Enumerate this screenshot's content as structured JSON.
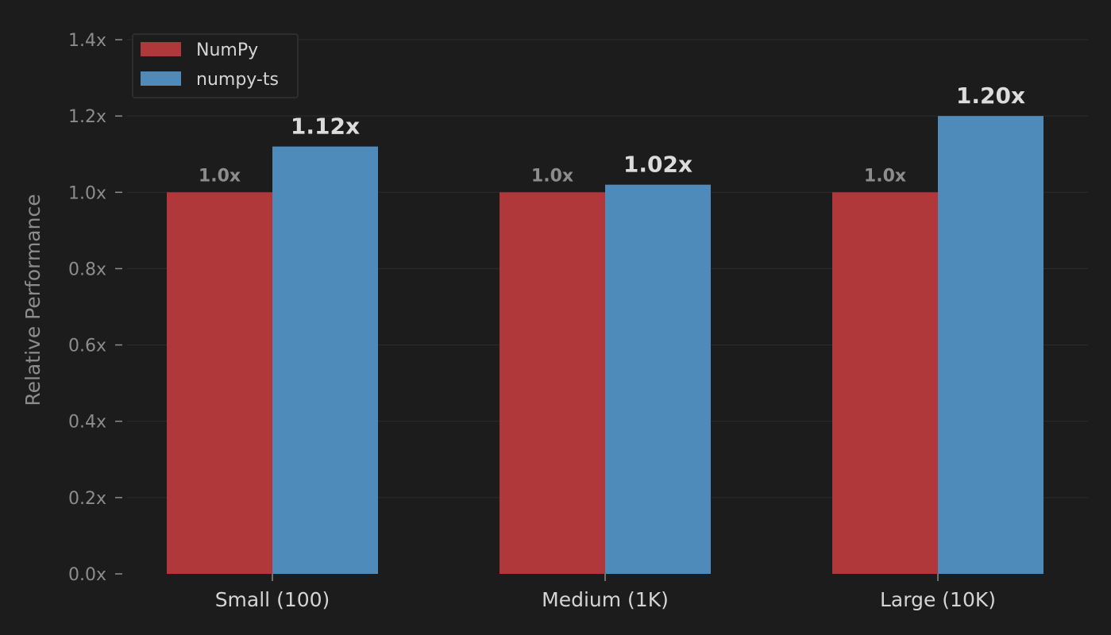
{
  "chart_data": {
    "type": "bar",
    "categories": [
      "Small (100)",
      "Medium (1K)",
      "Large (10K)"
    ],
    "series": [
      {
        "name": "NumPy",
        "values": [
          1.0,
          1.0,
          1.0
        ],
        "labels": [
          "1.0x",
          "1.0x",
          "1.0x"
        ],
        "color": "#b0383b"
      },
      {
        "name": "numpy-ts",
        "values": [
          1.12,
          1.02,
          1.2
        ],
        "labels": [
          "1.12x",
          "1.02x",
          "1.20x"
        ],
        "color": "#4f8bba"
      }
    ],
    "ylabel": "Relative Performance",
    "xlabel": "",
    "ylim": [
      0,
      1.4
    ],
    "yticks": [
      0.0,
      0.2,
      0.4,
      0.6,
      0.8,
      1.0,
      1.2,
      1.4
    ],
    "ytick_labels": [
      "0.0x",
      "0.2x",
      "0.4x",
      "0.6x",
      "0.8x",
      "1.0x",
      "1.2x",
      "1.4x"
    ],
    "grid": true,
    "legend_position": "top-left",
    "colors": {
      "background": "#1c1c1c",
      "grid": "#2c2c2c",
      "tick": "#8c8c8c"
    }
  }
}
